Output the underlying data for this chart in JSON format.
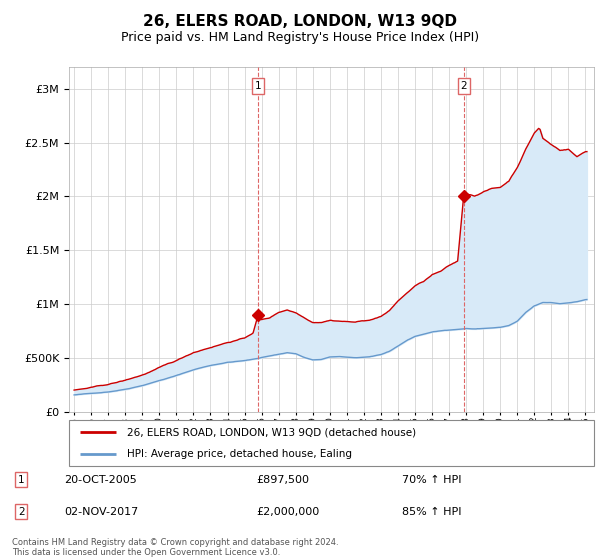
{
  "title": "26, ELERS ROAD, LONDON, W13 9QD",
  "subtitle": "Price paid vs. HM Land Registry's House Price Index (HPI)",
  "title_fontsize": 11,
  "subtitle_fontsize": 9,
  "legend_line1": "26, ELERS ROAD, LONDON, W13 9QD (detached house)",
  "legend_line2": "HPI: Average price, detached house, Ealing",
  "transaction1_label": "1",
  "transaction1_date": "20-OCT-2005",
  "transaction1_price": "£897,500",
  "transaction1_hpi": "70% ↑ HPI",
  "transaction1_year": 2005.8,
  "transaction1_value": 897500,
  "transaction2_label": "2",
  "transaction2_date": "02-NOV-2017",
  "transaction2_price": "£2,000,000",
  "transaction2_hpi": "85% ↑ HPI",
  "transaction2_year": 2017.85,
  "transaction2_value": 2000000,
  "footer": "Contains HM Land Registry data © Crown copyright and database right 2024.\nThis data is licensed under the Open Government Licence v3.0.",
  "red_color": "#cc0000",
  "blue_color": "#6699cc",
  "fill_color": "#d8eaf8",
  "dashed_color": "#dd6666",
  "background_color": "#ffffff",
  "ylim": [
    0,
    3200000
  ],
  "xlim_start": 1994.7,
  "xlim_end": 2025.5
}
